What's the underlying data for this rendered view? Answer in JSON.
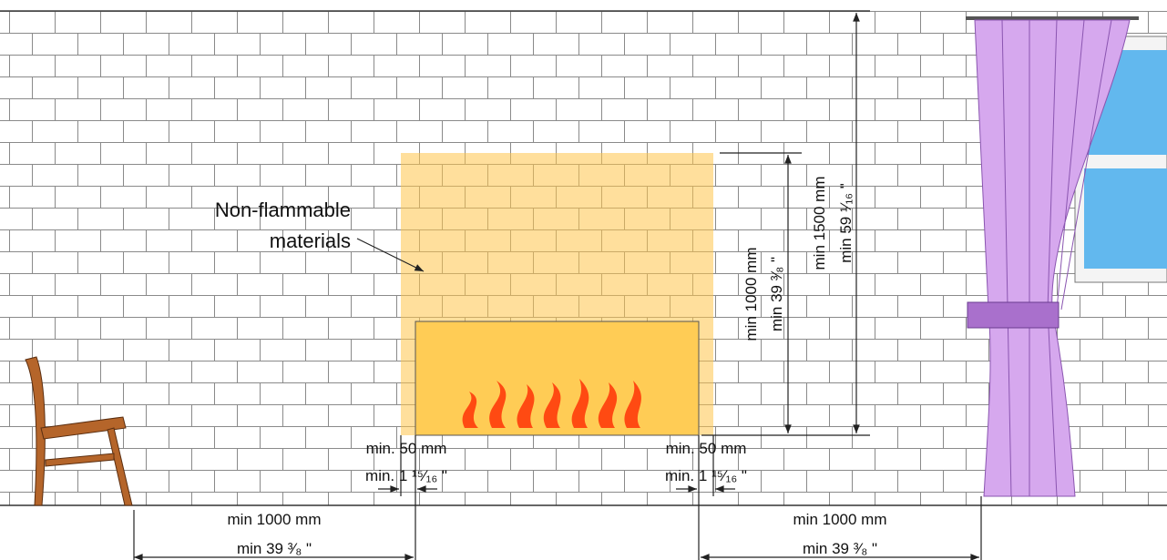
{
  "annotation": {
    "lines": [
      "Non-flammable",
      "materials"
    ]
  },
  "dimensions": {
    "side_left": {
      "mm": "min. 50 mm",
      "inch": "min. 1 ¹⁵⁄₁₆ \""
    },
    "side_right": {
      "mm": "min. 50 mm",
      "inch": "min. 1 ¹⁵⁄₁₆ \""
    },
    "height_protection": {
      "mm": "min 1000 mm",
      "inch": "min 39 ³⁄₈ \""
    },
    "height_total": {
      "mm": "min 1500 mm",
      "inch": "min 59 ¹⁄₁₆ \""
    },
    "distance_left": {
      "mm": "min 1000 mm",
      "inch": "min 39 ³⁄₈ \""
    },
    "distance_right": {
      "mm": "min 1000 mm",
      "inch": "min 39 ³⁄₈ \""
    }
  }
}
